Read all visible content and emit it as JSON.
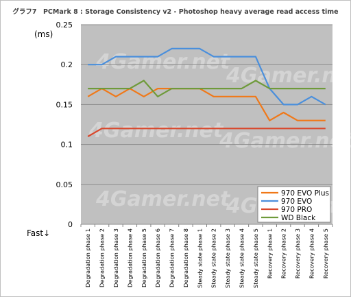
{
  "figure": {
    "title": "グラフ7　PCMark 8 : Storage Consistency v2 - Photoshop heavy average read access time",
    "unit_label": "(ms)",
    "direction_label": "Fast↓",
    "watermark": "4Gamer.net"
  },
  "chart_data": {
    "type": "line",
    "title": "グラフ7　PCMark 8 : Storage Consistency v2 - Photoshop heavy average read access time",
    "ylabel": "(ms)",
    "xlabel": "",
    "ylim": [
      0,
      0.25
    ],
    "yticks": [
      0,
      0.05,
      0.1,
      0.15,
      0.2,
      0.25
    ],
    "ytick_labels": [
      "0",
      "0.05",
      "0.1",
      "0.15",
      "0.2",
      "0.25"
    ],
    "grid": "horizontal",
    "legend_position": "bottom-right",
    "categories": [
      "Degradation phase 1",
      "Degradation phase 2",
      "Degradation phase 3",
      "Degradation phase 4",
      "Degradation phase 5",
      "Degradation phase 6",
      "Degradation phase 7",
      "Degradation phase 8",
      "Steady state phase 1",
      "Steady state phase 2",
      "Steady state phase 3",
      "Steady state phase 4",
      "Steady state phase 5",
      "Recovery phase 1",
      "Recovery phase 2",
      "Recovery phase 3",
      "Recovery phase 4",
      "Recovery phase 5"
    ],
    "series": [
      {
        "name": "970 EVO Plus",
        "color": "#f07818",
        "values": [
          0.16,
          0.17,
          0.16,
          0.17,
          0.16,
          0.17,
          0.17,
          0.17,
          0.17,
          0.16,
          0.16,
          0.16,
          0.16,
          0.13,
          0.14,
          0.13,
          0.13,
          0.13
        ]
      },
      {
        "name": "970 EVO",
        "color": "#4a8fdc",
        "values": [
          0.2,
          0.2,
          0.21,
          0.21,
          0.21,
          0.21,
          0.22,
          0.22,
          0.22,
          0.21,
          0.21,
          0.21,
          0.21,
          0.17,
          0.15,
          0.15,
          0.16,
          0.15
        ]
      },
      {
        "name": "970 PRO",
        "color": "#d9472b",
        "values": [
          0.11,
          0.12,
          0.12,
          0.12,
          0.12,
          0.12,
          0.12,
          0.12,
          0.12,
          0.12,
          0.12,
          0.12,
          0.12,
          0.12,
          0.12,
          0.12,
          0.12,
          0.12
        ]
      },
      {
        "name": "WD Black",
        "color": "#6e9a3a",
        "values": [
          0.17,
          0.17,
          0.17,
          0.17,
          0.18,
          0.16,
          0.17,
          0.17,
          0.17,
          0.17,
          0.17,
          0.17,
          0.18,
          0.17,
          0.17,
          0.17,
          0.17,
          0.17
        ]
      }
    ]
  }
}
